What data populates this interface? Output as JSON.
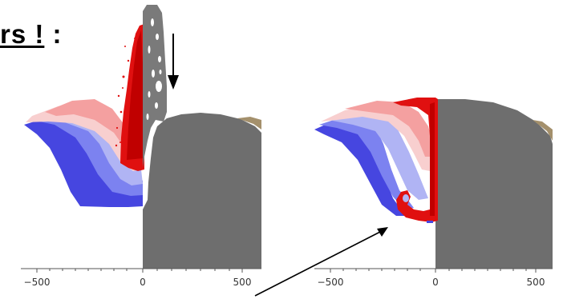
{
  "headline": {
    "underlined": "rs !",
    "trailing": " :"
  },
  "panels": [
    {
      "id": "left",
      "ticks": [
        "−500",
        "0",
        "500"
      ]
    },
    {
      "id": "right",
      "ticks": [
        "−500",
        "0",
        "500"
      ]
    }
  ],
  "colors": {
    "red": "#e01010",
    "dark_red": "#c00000",
    "pink": "#f4a0a0",
    "light_pink": "#f8cfcf",
    "lavender": "#b0b4f4",
    "blue": "#7c82f0",
    "deep_blue": "#4646e0",
    "gray": "#6e6e6e",
    "tan": "#a4906c"
  }
}
